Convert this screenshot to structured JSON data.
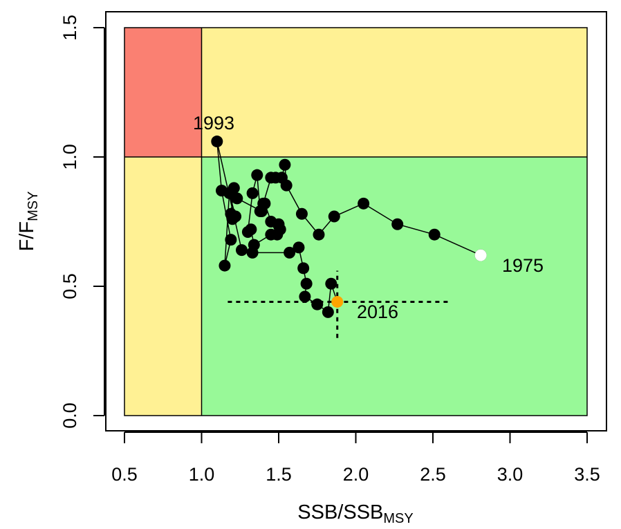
{
  "chart_data": {
    "type": "scatter",
    "title": "",
    "xlabel": {
      "main": "SSB/SSB",
      "sub": "MSY"
    },
    "ylabel": {
      "main": "F/F",
      "sub": "MSY"
    },
    "xlim": [
      0.5,
      3.5
    ],
    "ylim": [
      0.0,
      1.5
    ],
    "x_ticks": [
      "0.5",
      "1.0",
      "1.5",
      "2.0",
      "2.5",
      "3.0",
      "3.5"
    ],
    "y_ticks": [
      "0.0",
      "0.5",
      "1.0",
      "1.5"
    ],
    "reference_lines": {
      "ssb_ratio": 1.0,
      "f_ratio": 1.0
    },
    "zones": [
      {
        "name": "overfished-overfishing",
        "x": [
          0.5,
          1.0
        ],
        "y": [
          1.0,
          1.5
        ],
        "color": "#fa8072"
      },
      {
        "name": "overfishing",
        "x": [
          1.0,
          3.5
        ],
        "y": [
          1.0,
          1.5
        ],
        "color": "#fff194"
      },
      {
        "name": "overfished",
        "x": [
          0.5,
          1.0
        ],
        "y": [
          0.0,
          1.0
        ],
        "color": "#fff194"
      },
      {
        "name": "healthy",
        "x": [
          1.0,
          3.5
        ],
        "y": [
          0.0,
          1.0
        ],
        "color": "#98f998"
      }
    ],
    "series": [
      {
        "name": "trajectory",
        "color": "#000000",
        "x": [
          2.81,
          2.51,
          2.27,
          2.05,
          1.86,
          1.76,
          1.65,
          1.55,
          1.54,
          1.52,
          1.48,
          1.45,
          1.4,
          1.38,
          1.36,
          1.33,
          1.3,
          1.32,
          1.34,
          1.45,
          1.5,
          1.51,
          1.49,
          1.45,
          1.41,
          1.39,
          1.23,
          1.21,
          1.19,
          1.2,
          1.22,
          1.18,
          1.15,
          1.19,
          1.13,
          1.1,
          1.26,
          1.33,
          1.57,
          1.63,
          1.66,
          1.68,
          1.67,
          1.75,
          1.82,
          1.84
        ],
        "y": [
          0.62,
          0.7,
          0.74,
          0.82,
          0.77,
          0.7,
          0.78,
          0.89,
          0.97,
          0.92,
          0.92,
          0.92,
          0.82,
          0.79,
          0.93,
          0.86,
          0.71,
          0.72,
          0.66,
          0.7,
          0.74,
          0.72,
          0.7,
          0.75,
          0.82,
          0.79,
          0.84,
          0.88,
          0.78,
          0.76,
          0.77,
          0.86,
          0.58,
          0.68,
          0.87,
          1.06,
          0.64,
          0.63,
          0.63,
          0.65,
          0.57,
          0.51,
          0.46,
          0.43,
          0.4,
          0.51
        ]
      }
    ],
    "start_point": {
      "year": "1975",
      "x": 2.81,
      "y": 0.62,
      "color": "#ffffff"
    },
    "end_point": {
      "year": "2016",
      "x": 1.88,
      "y": 0.44,
      "color": "#ffa500",
      "ci_x": [
        1.17,
        2.61
      ],
      "ci_y": [
        0.3,
        0.56
      ]
    },
    "annotations": [
      {
        "id": "year-1975",
        "text": "1975",
        "x": 2.81,
        "y": 0.62
      },
      {
        "id": "year-1993",
        "text": "1993",
        "x": 1.1,
        "y": 1.06
      },
      {
        "id": "year-2016",
        "text": "2016",
        "x": 1.88,
        "y": 0.44
      }
    ]
  }
}
